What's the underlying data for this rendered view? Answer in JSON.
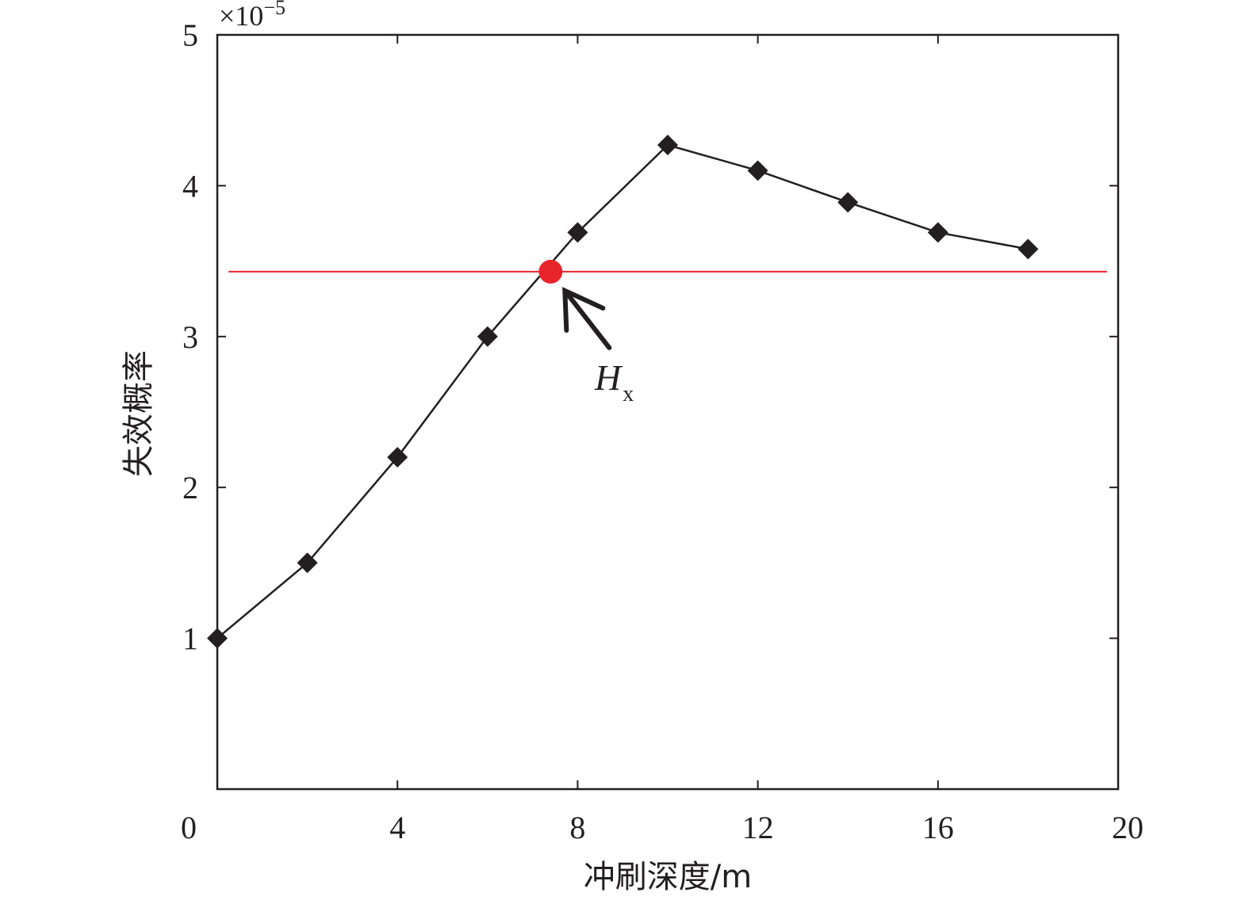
{
  "chart_data": {
    "type": "line",
    "title": "",
    "xlabel": "冲刷深度/m",
    "ylabel": "失效概率",
    "y_exponent_label": "×10",
    "y_exponent_power": "−5",
    "xlim": [
      0,
      20
    ],
    "ylim": [
      0,
      5
    ],
    "x_ticks": [
      0,
      4,
      8,
      12,
      16,
      20
    ],
    "x_tick_labels": [
      "0",
      "4",
      "8",
      "12",
      "16",
      "20"
    ],
    "y_ticks": [
      1,
      2,
      3,
      4,
      5
    ],
    "y_tick_labels": [
      "1",
      "2",
      "3",
      "4",
      "5"
    ],
    "grid": false,
    "series": [
      {
        "marker": "diamond",
        "color": "#231f20",
        "x": [
          0,
          2,
          4,
          6,
          8,
          10,
          12,
          14,
          16,
          18
        ],
        "y": [
          1.0,
          1.5,
          2.2,
          3.0,
          3.69,
          4.27,
          4.1,
          3.89,
          3.69,
          3.58
        ]
      }
    ],
    "threshold": {
      "y": 3.43,
      "x_range": [
        0.25,
        19.75
      ],
      "color": "#e8242b"
    },
    "highlight_point": {
      "x": 7.4,
      "y": 3.43,
      "color": "#e8242b"
    },
    "annotation": {
      "label": "H",
      "subscript": "x"
    }
  }
}
